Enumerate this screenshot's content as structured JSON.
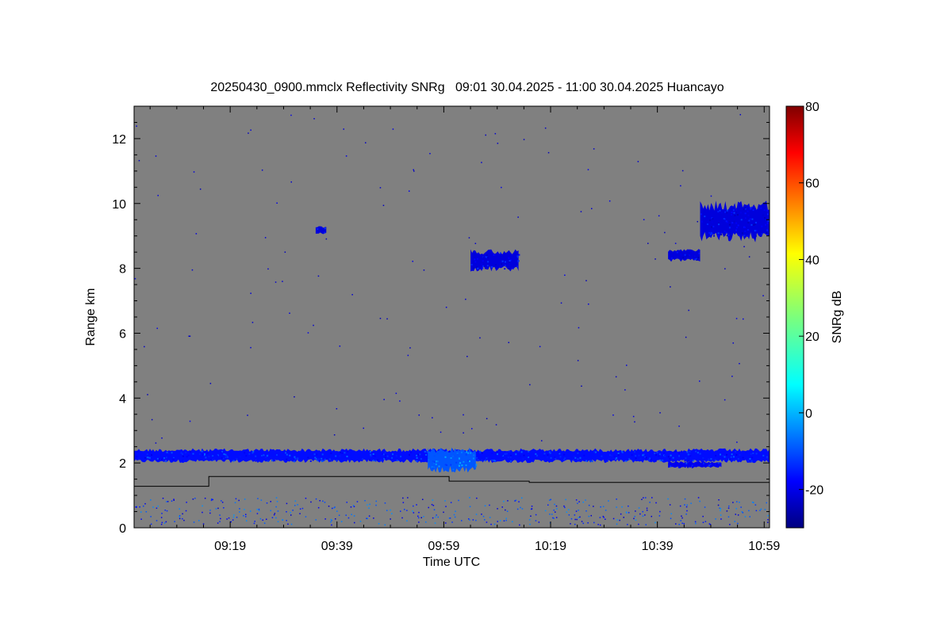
{
  "chart_data": {
    "type": "heatmap",
    "title": "20250430_0900.mmclx Reflectivity SNRg   09:01 30.04.2025 - 11:00 30.04.2025 Huancayo",
    "xlabel": "Time UTC",
    "ylabel": "Range km",
    "x_tick_labels": [
      "09:19",
      "09:39",
      "09:59",
      "10:19",
      "10:39",
      "10:59"
    ],
    "x_tick_minutes": [
      18,
      38,
      58,
      78,
      98,
      118
    ],
    "xlim_minutes": [
      0,
      119
    ],
    "y_ticks": [
      0,
      2,
      4,
      6,
      8,
      10,
      12
    ],
    "y_tick_labels": [
      "0",
      "2",
      "4",
      "6",
      "8",
      "10",
      "12"
    ],
    "ylim": [
      0,
      13
    ],
    "colorbar": {
      "label": "SNRg dB",
      "ticks": [
        -20,
        0,
        20,
        40,
        60,
        80
      ],
      "tick_labels": [
        "-20",
        "0",
        "20",
        "40",
        "60",
        "80"
      ],
      "range": [
        -30,
        80
      ],
      "colormap": "jet"
    },
    "background_color": "#808080",
    "grid": false,
    "features": [
      {
        "name": "low cloud layer",
        "t_start": 0,
        "t_end": 119,
        "range_km": [
          2.0,
          2.45
        ],
        "snr_db": -15
      },
      {
        "name": "thickened cloud",
        "t_start": 55,
        "t_end": 64,
        "range_km": [
          1.7,
          2.5
        ],
        "snr_db": -7
      },
      {
        "name": "lower cloud fragment",
        "t_start": 100,
        "t_end": 110,
        "range_km": [
          1.85,
          2.05
        ],
        "snr_db": -18
      },
      {
        "name": "isolated echo",
        "t_start": 34,
        "t_end": 36,
        "range_km": [
          9.05,
          9.3
        ],
        "snr_db": -20
      },
      {
        "name": "isolated cloud",
        "t_start": 63,
        "t_end": 72,
        "range_km": [
          7.9,
          8.6
        ],
        "snr_db": -20
      },
      {
        "name": "isolated cloud",
        "t_start": 100,
        "t_end": 106,
        "range_km": [
          8.2,
          8.6
        ],
        "snr_db": -20
      },
      {
        "name": "upper cloud",
        "t_start": 106,
        "t_end": 119,
        "range_km": [
          8.8,
          10.1
        ],
        "snr_db": -20
      }
    ],
    "black_line": [
      {
        "t": 0,
        "range_km": 1.28
      },
      {
        "t": 14,
        "range_km": 1.28
      },
      {
        "t": 14,
        "range_km": 1.58
      },
      {
        "t": 59,
        "range_km": 1.58
      },
      {
        "t": 59,
        "range_km": 1.44
      },
      {
        "t": 74,
        "range_km": 1.44
      },
      {
        "t": 74,
        "range_km": 1.4
      },
      {
        "t": 119,
        "range_km": 1.4
      }
    ]
  }
}
